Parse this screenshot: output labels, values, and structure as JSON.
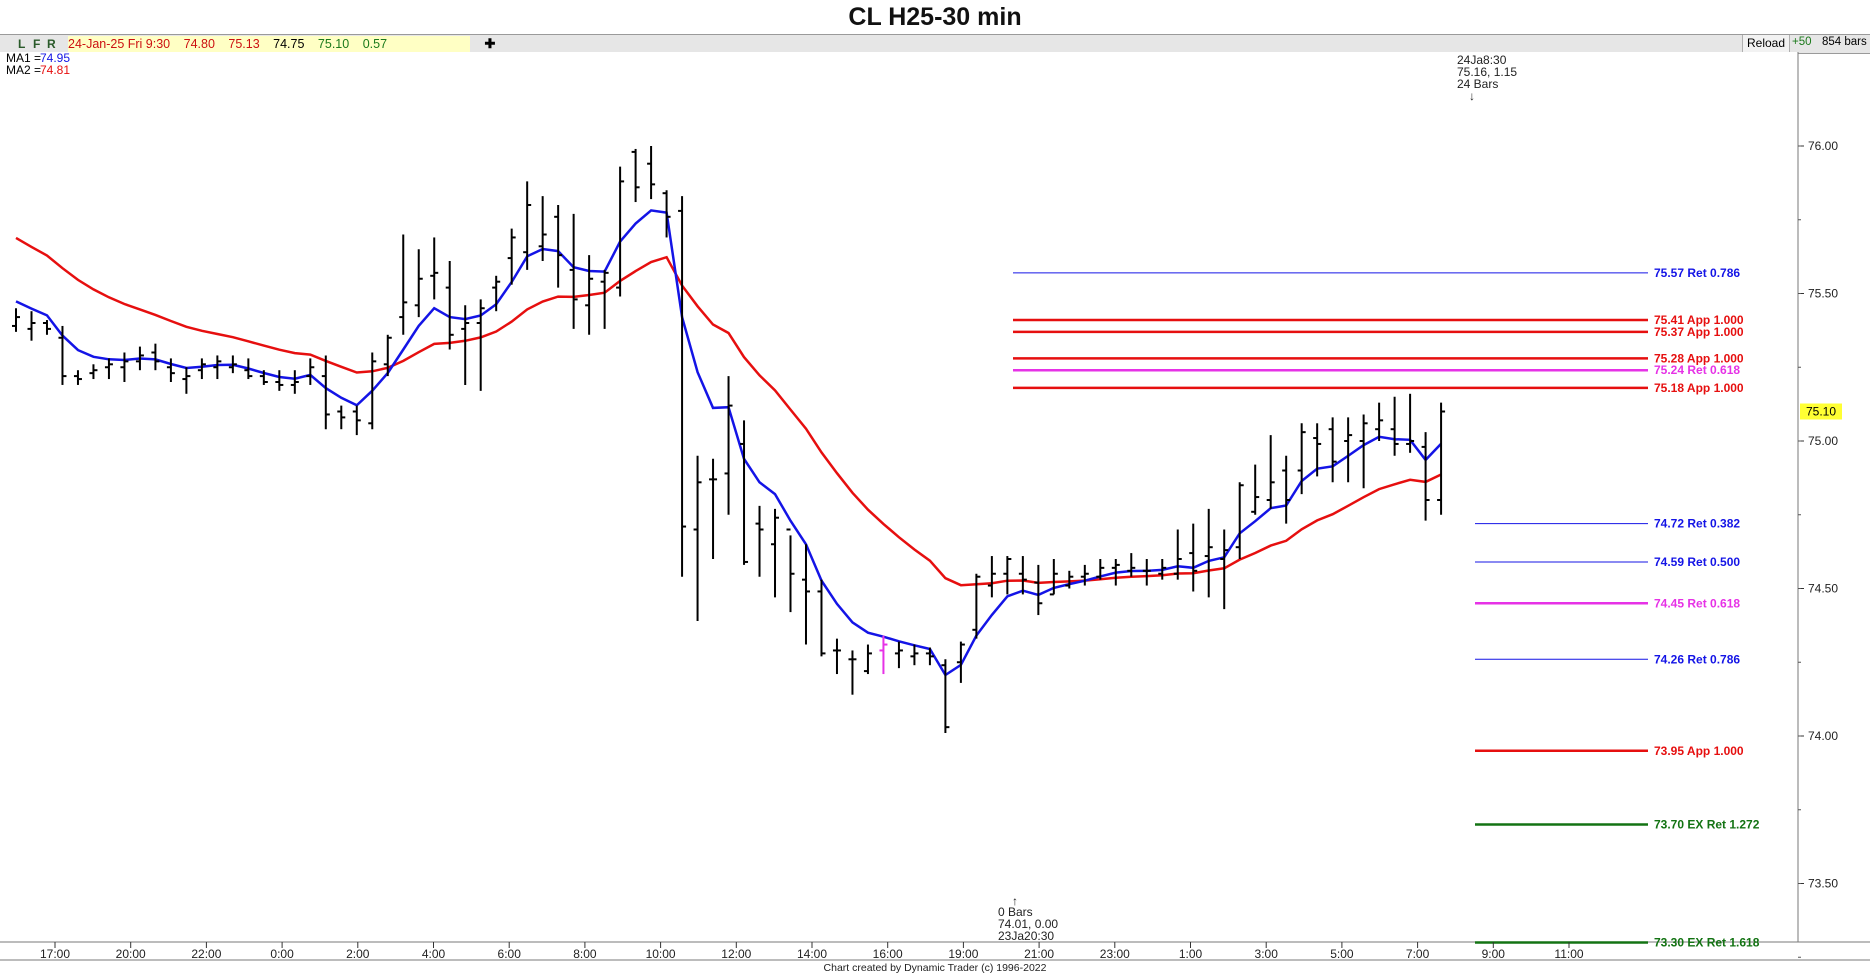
{
  "title": "CL H25-30 min",
  "toolbar": {
    "buttons": [
      "L",
      "F",
      "R"
    ],
    "quote": {
      "date": "24-Jan-25 Fri 9:30",
      "open": "74.80",
      "high": "75.13",
      "low": "74.75",
      "close": "75.10",
      "change": "0.57"
    },
    "cross_label": "✚",
    "reload_label": "Reload",
    "plus_label": "+50",
    "bars_label": "854 bars"
  },
  "colors": {
    "ma1": "#1414e6",
    "ma2": "#e60f0f",
    "bars": "#000000",
    "highlight_bar": "#e632e6",
    "ret": "#1414e6",
    "app": "#e60f0f",
    "magenta": "#e632e6",
    "ex": "#137313",
    "last_price_bg": "#ffff33"
  },
  "footer": "Chart created by Dynamic Trader  (c) 1996-2022",
  "chart_data": {
    "type": "ohlc",
    "title": "CL H25-30 min",
    "ylim": [
      73.2,
      76.2
    ],
    "y_ticks": [
      "76.00",
      "75.50",
      "75.00",
      "74.50",
      "74.00",
      "73.50"
    ],
    "x_ticks": [
      "17:00",
      "20:00",
      "22:00",
      "0:00",
      "2:00",
      "4:00",
      "6:00",
      "8:00",
      "10:00",
      "12:00",
      "14:00",
      "16:00",
      "19:00",
      "21:00",
      "23:00",
      "1:00",
      "3:00",
      "5:00",
      "7:00",
      "9:00",
      "11:00"
    ],
    "last_price": "75.10",
    "indicators": [
      {
        "name": "MA1",
        "value": "74.95",
        "label": "MA1 = 74.95"
      },
      {
        "name": "MA2",
        "value": "74.81",
        "label": "MA2 = 74.81"
      }
    ],
    "bars": [
      [
        75.39,
        75.45,
        75.37,
        75.42
      ],
      [
        75.38,
        75.44,
        75.34,
        75.4
      ],
      [
        75.4,
        75.41,
        75.36,
        75.38
      ],
      [
        75.35,
        75.39,
        75.19,
        75.22
      ],
      [
        75.22,
        75.24,
        75.19,
        75.21
      ],
      [
        75.23,
        75.26,
        75.21,
        75.24
      ],
      [
        75.25,
        75.28,
        75.21,
        75.26
      ],
      [
        75.25,
        75.3,
        75.2,
        75.27
      ],
      [
        75.27,
        75.32,
        75.24,
        75.29
      ],
      [
        75.3,
        75.33,
        75.24,
        75.27
      ],
      [
        75.25,
        75.28,
        75.2,
        75.23
      ],
      [
        75.21,
        75.25,
        75.16,
        75.22
      ],
      [
        75.24,
        75.28,
        75.21,
        75.26
      ],
      [
        75.25,
        75.29,
        75.21,
        75.27
      ],
      [
        75.25,
        75.29,
        75.23,
        75.26
      ],
      [
        75.24,
        75.28,
        75.21,
        75.22
      ],
      [
        75.22,
        75.24,
        75.19,
        75.2
      ],
      [
        75.2,
        75.24,
        75.17,
        75.19
      ],
      [
        75.19,
        75.24,
        75.16,
        75.2
      ],
      [
        75.22,
        75.28,
        75.19,
        75.25
      ],
      [
        75.22,
        75.29,
        75.04,
        75.09
      ],
      [
        75.1,
        75.12,
        75.04,
        75.08
      ],
      [
        75.1,
        75.12,
        75.02,
        75.07
      ],
      [
        75.06,
        75.3,
        75.04,
        75.27
      ],
      [
        75.26,
        75.36,
        75.22,
        75.35
      ],
      [
        75.42,
        75.7,
        75.36,
        75.47
      ],
      [
        75.46,
        75.65,
        75.42,
        75.55
      ],
      [
        75.56,
        75.69,
        75.48,
        75.57
      ],
      [
        75.52,
        75.61,
        75.31,
        75.36
      ],
      [
        75.38,
        75.46,
        75.19,
        75.4
      ],
      [
        75.4,
        75.48,
        75.17,
        75.45
      ],
      [
        75.52,
        75.56,
        75.44,
        75.54
      ],
      [
        75.62,
        75.72,
        75.53,
        75.69
      ],
      [
        75.64,
        75.88,
        75.58,
        75.8
      ],
      [
        75.66,
        75.83,
        75.61,
        75.7
      ],
      [
        75.76,
        75.8,
        75.52,
        75.63
      ],
      [
        75.58,
        75.77,
        75.38,
        75.48
      ],
      [
        75.46,
        75.63,
        75.36,
        75.55
      ],
      [
        75.54,
        75.58,
        75.38,
        75.57
      ],
      [
        75.52,
        75.93,
        75.49,
        75.88
      ],
      [
        75.98,
        75.99,
        75.81,
        75.86
      ],
      [
        75.94,
        76.0,
        75.82,
        75.87
      ],
      [
        75.84,
        75.85,
        75.69,
        75.76
      ],
      [
        75.78,
        75.83,
        74.54,
        74.71
      ],
      [
        74.7,
        74.95,
        74.39,
        74.86
      ],
      [
        74.87,
        74.94,
        74.6,
        74.87
      ],
      [
        74.89,
        75.22,
        74.75,
        75.12
      ],
      [
        74.99,
        75.07,
        74.58,
        74.59
      ],
      [
        74.72,
        74.78,
        74.54,
        74.7
      ],
      [
        74.65,
        74.77,
        74.47,
        74.74
      ],
      [
        74.7,
        74.68,
        74.42,
        74.55
      ],
      [
        74.53,
        74.65,
        74.31,
        74.49
      ],
      [
        74.49,
        74.53,
        74.27,
        74.28
      ],
      [
        74.29,
        74.33,
        74.21,
        74.29
      ],
      [
        74.26,
        74.29,
        74.14,
        74.26
      ],
      [
        74.22,
        74.31,
        74.21,
        74.28
      ],
      [
        74.29,
        74.34,
        74.21,
        74.31
      ],
      [
        74.28,
        74.32,
        74.23,
        74.29
      ],
      [
        74.27,
        74.31,
        74.24,
        74.28
      ],
      [
        74.28,
        74.3,
        74.24,
        74.27
      ],
      [
        74.24,
        74.26,
        74.01,
        74.03
      ],
      [
        74.25,
        74.32,
        74.18,
        74.31
      ],
      [
        74.36,
        74.55,
        74.33,
        74.54
      ],
      [
        74.51,
        74.61,
        74.47,
        74.55
      ],
      [
        74.55,
        74.61,
        74.48,
        74.6
      ],
      [
        74.55,
        74.61,
        74.48,
        74.53
      ],
      [
        74.52,
        74.58,
        74.41,
        74.45
      ],
      [
        74.48,
        74.6,
        74.48,
        74.55
      ],
      [
        74.51,
        74.56,
        74.5,
        74.54
      ],
      [
        74.54,
        74.58,
        74.51,
        74.55
      ],
      [
        74.54,
        74.6,
        74.53,
        74.57
      ],
      [
        74.57,
        74.6,
        74.51,
        74.58
      ],
      [
        74.56,
        74.62,
        74.54,
        74.57
      ],
      [
        74.56,
        74.6,
        74.51,
        74.56
      ],
      [
        74.55,
        74.6,
        74.53,
        74.57
      ],
      [
        74.55,
        74.7,
        74.53,
        74.6
      ],
      [
        74.62,
        74.72,
        74.49,
        74.56
      ],
      [
        74.61,
        74.77,
        74.47,
        74.64
      ],
      [
        74.6,
        74.7,
        74.43,
        74.63
      ],
      [
        74.64,
        74.86,
        74.6,
        74.85
      ],
      [
        74.76,
        74.92,
        74.75,
        74.81
      ],
      [
        74.8,
        75.02,
        74.77,
        74.86
      ],
      [
        74.9,
        74.95,
        74.72,
        74.8
      ],
      [
        74.9,
        75.06,
        74.82,
        75.03
      ],
      [
        75.01,
        75.06,
        74.88,
        74.99
      ],
      [
        75.04,
        75.08,
        74.86,
        74.93
      ],
      [
        75.0,
        75.08,
        74.86,
        75.02
      ],
      [
        75.0,
        75.09,
        74.84,
        75.06
      ],
      [
        75.04,
        75.13,
        75.0,
        75.07
      ],
      [
        75.04,
        75.15,
        74.95,
        74.99
      ],
      [
        74.99,
        75.16,
        74.96,
        75.0
      ],
      [
        74.98,
        75.03,
        74.73,
        74.8
      ],
      [
        74.8,
        75.13,
        74.75,
        75.1
      ]
    ],
    "highlight_bar_index": 56,
    "levels": [
      {
        "value": 75.57,
        "label": "75.57 Ret 0.786",
        "kind": "ret",
        "span": "long"
      },
      {
        "value": 75.41,
        "label": "75.41 App 1.000",
        "kind": "app",
        "span": "long"
      },
      {
        "value": 75.37,
        "label": "75.37 App 1.000",
        "kind": "app",
        "span": "long"
      },
      {
        "value": 75.28,
        "label": "75.28 App 1.000",
        "kind": "app",
        "span": "long"
      },
      {
        "value": 75.24,
        "label": "75.24 Ret 0.618",
        "kind": "magenta",
        "span": "long"
      },
      {
        "value": 75.18,
        "label": "75.18 App 1.000",
        "kind": "app",
        "span": "long"
      },
      {
        "value": 74.72,
        "label": "74.72 Ret 0.382",
        "kind": "ret",
        "span": "short"
      },
      {
        "value": 74.59,
        "label": "74.59 Ret 0.500",
        "kind": "ret",
        "span": "short"
      },
      {
        "value": 74.45,
        "label": "74.45 Ret 0.618",
        "kind": "magenta",
        "span": "short"
      },
      {
        "value": 74.26,
        "label": "74.26 Ret 0.786",
        "kind": "ret",
        "span": "short"
      },
      {
        "value": 73.95,
        "label": "73.95 App 1.000",
        "kind": "app",
        "span": "short"
      },
      {
        "value": 73.7,
        "label": "73.70 EX Ret 1.272",
        "kind": "ex",
        "span": "short"
      },
      {
        "value": 73.3,
        "label": "73.30 EX Ret 1.618",
        "kind": "ex",
        "span": "short"
      }
    ],
    "pivot_annotations": [
      {
        "text": [
          "24Ja8:30",
          "75.16, 1.15",
          "24 Bars"
        ],
        "position": "above-high"
      },
      {
        "text": [
          "0 Bars",
          "74.01, 0.00",
          "23Ja20:30"
        ],
        "position": "below-low"
      }
    ]
  }
}
